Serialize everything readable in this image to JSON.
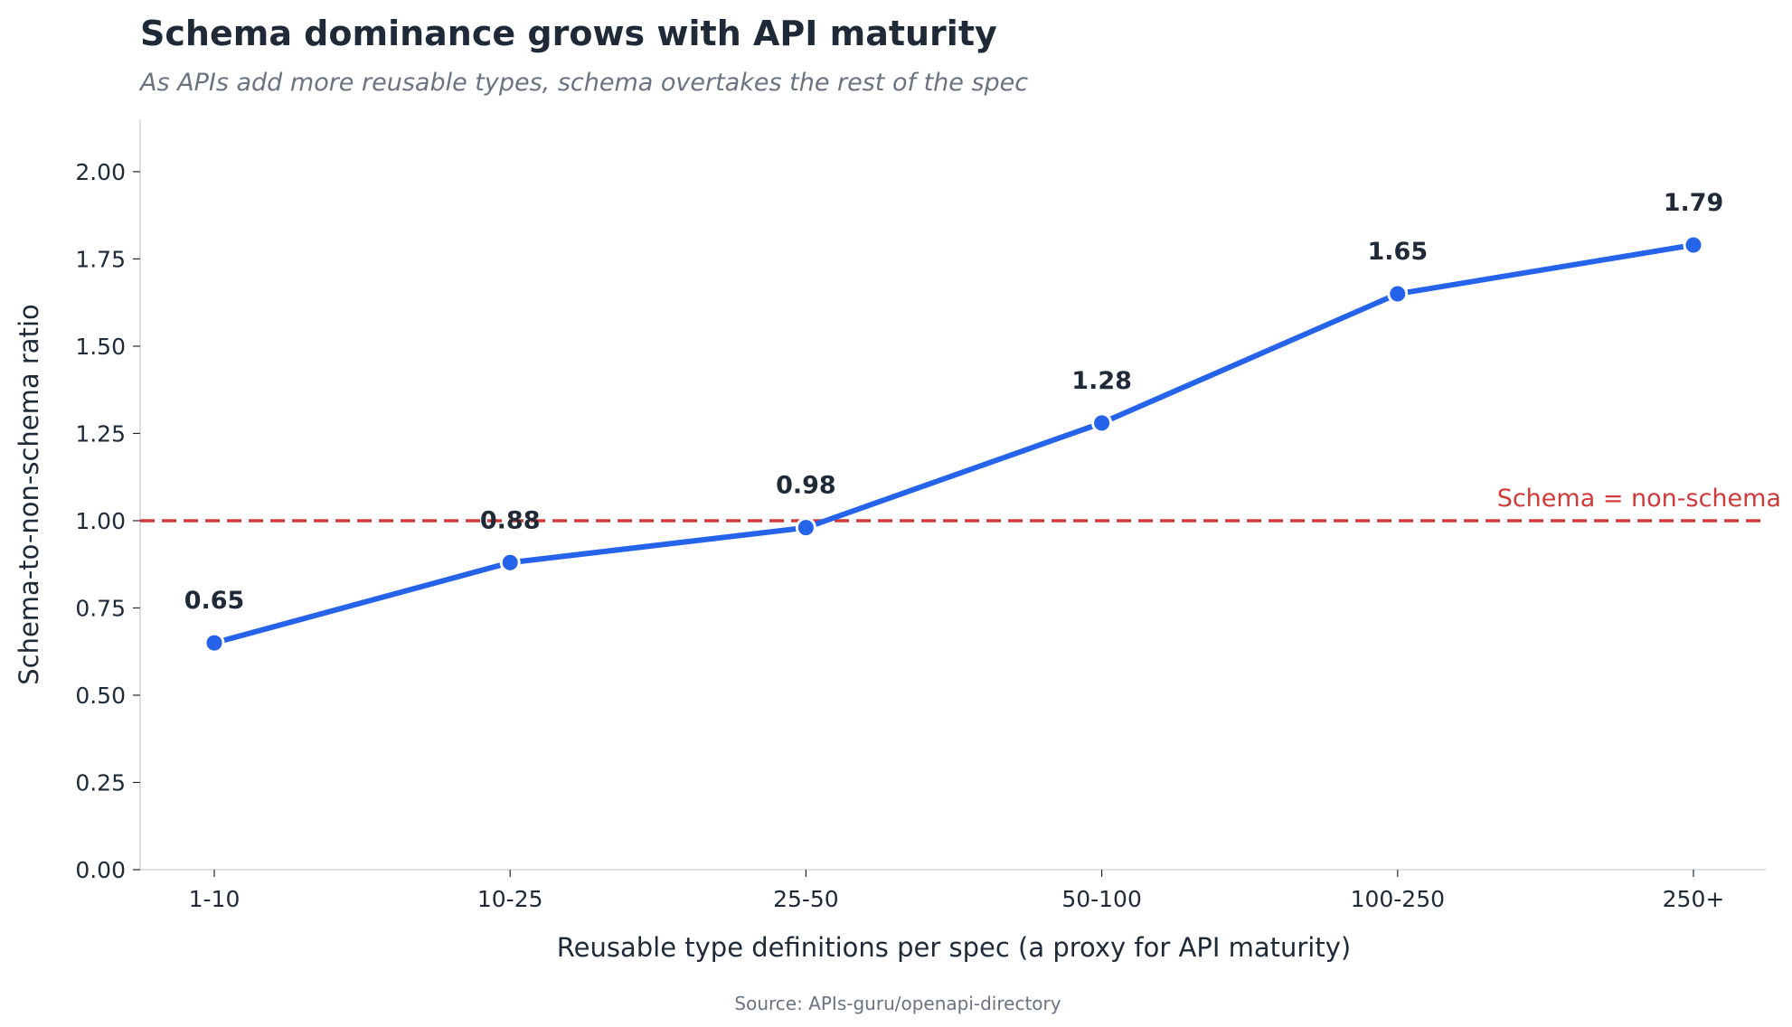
{
  "chart_data": {
    "type": "line",
    "title": "Schema dominance grows with API maturity",
    "subtitle": "As APIs add more reusable types, schema overtakes the rest of the spec",
    "xlabel": "Reusable type definitions per spec (a proxy for API maturity)",
    "ylabel": "Schema-to-non-schema ratio",
    "categories": [
      "1-10",
      "10-25",
      "25-50",
      "50-100",
      "100-250",
      "250+"
    ],
    "series": [
      {
        "name": "Schema-to-non-schema ratio",
        "values": [
          0.65,
          0.88,
          0.98,
          1.28,
          1.65,
          1.79
        ],
        "labels": [
          "0.65",
          "0.88",
          "0.98",
          "1.28",
          "1.65",
          "1.79"
        ],
        "color": "#2563eb"
      }
    ],
    "ylim": [
      0,
      2.15
    ],
    "yticks": [
      0,
      0.25,
      0.5,
      0.75,
      1.0,
      1.25,
      1.5,
      1.75,
      2.0
    ],
    "ytick_labels": [
      "0.00",
      "0.25",
      "0.50",
      "0.75",
      "1.00",
      "1.25",
      "1.50",
      "1.75",
      "2.00"
    ],
    "reference_line": {
      "value": 1.0,
      "label": "Schema = non-schema",
      "color": "#d03a3a",
      "style": "dashed"
    },
    "grid": false,
    "legend": "none",
    "source": "Source: APIs-guru/openapi-directory"
  },
  "colors": {
    "line": "#2563eb",
    "reference": "#d03a3a",
    "axis": "#d1d5db",
    "text": "#1f2937",
    "muted": "#6b7280"
  }
}
